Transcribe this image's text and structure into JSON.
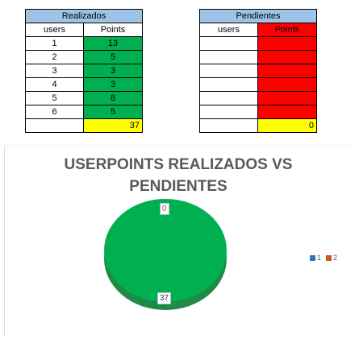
{
  "realizados": {
    "title": "Realizados",
    "col_users": "users",
    "col_points": "Points",
    "rows": [
      {
        "user": "1",
        "points": "13"
      },
      {
        "user": "2",
        "points": "5"
      },
      {
        "user": "3",
        "points": "3"
      },
      {
        "user": "4",
        "points": "3"
      },
      {
        "user": "5",
        "points": "8"
      },
      {
        "user": "6",
        "points": "5"
      }
    ],
    "total": "37"
  },
  "pendientes": {
    "title": "Pendientes",
    "col_users": "users",
    "col_points": "Points",
    "rows": [
      {
        "user": "",
        "points": ""
      },
      {
        "user": "",
        "points": ""
      },
      {
        "user": "",
        "points": ""
      },
      {
        "user": "",
        "points": ""
      },
      {
        "user": "",
        "points": ""
      },
      {
        "user": "",
        "points": ""
      }
    ],
    "total": "0"
  },
  "colors": {
    "header": "#9dc3e6",
    "green": "#00b050",
    "red": "#ff0000",
    "yellow": "#ffff00",
    "legend_1": "#2e75b6",
    "legend_2": "#c55a11"
  },
  "chart_data": {
    "type": "pie",
    "title": "USERPOINTS REALIZADOS VS PENDIENTES",
    "categories": [
      "1",
      "2"
    ],
    "values": [
      37,
      0
    ],
    "slice_colors": [
      "#00b050",
      "#ff0000"
    ],
    "data_labels": [
      "37",
      "0"
    ],
    "legend_position": "right",
    "three_d": true
  }
}
